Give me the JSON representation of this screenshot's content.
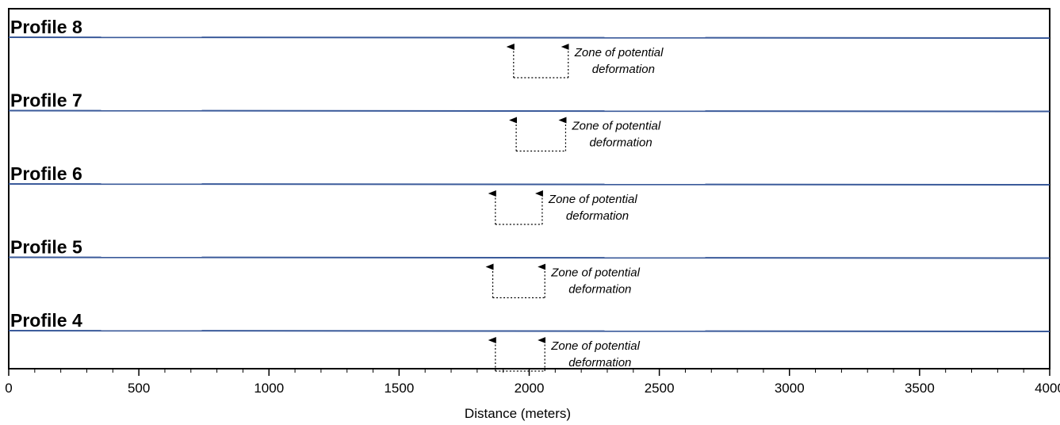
{
  "chart_data": {
    "type": "line",
    "xlabel": "Distance (meters)",
    "xlim": [
      0,
      4000
    ],
    "xticks": [
      0,
      500,
      1000,
      1500,
      2000,
      2500,
      3000,
      3500,
      4000
    ],
    "x_minor_step": 100,
    "grid": false,
    "profile_line_color": "#3a5a9a",
    "profiles": [
      {
        "name": "Profile 8",
        "zone": [
          1940,
          2150
        ],
        "zone_label": [
          "Zone of potential",
          "deformation"
        ]
      },
      {
        "name": "Profile 7",
        "zone": [
          1950,
          2140
        ],
        "zone_label": [
          "Zone of potential",
          "deformation"
        ]
      },
      {
        "name": "Profile 6",
        "zone": [
          1870,
          2050
        ],
        "zone_label": [
          "Zone of potential",
          "deformation"
        ]
      },
      {
        "name": "Profile 5",
        "zone": [
          1860,
          2060
        ],
        "zone_label": [
          "Zone of potential",
          "deformation"
        ]
      },
      {
        "name": "Profile 4",
        "zone": [
          1870,
          2060
        ],
        "zone_label": [
          "Zone of potential",
          "deformation"
        ]
      }
    ]
  }
}
